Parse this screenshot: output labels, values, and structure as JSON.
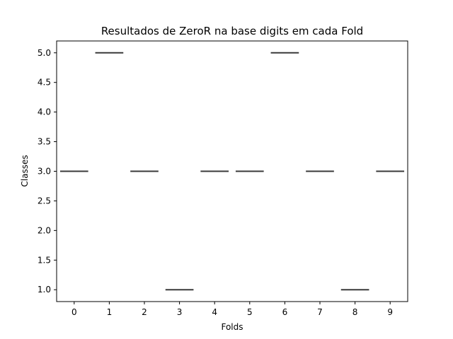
{
  "chart_data": {
    "type": "box",
    "title": "Resultados de ZeroR na base digits em cada Fold",
    "xlabel": "Folds",
    "ylabel": "Classes",
    "categories": [
      "0",
      "1",
      "2",
      "3",
      "4",
      "5",
      "6",
      "7",
      "8",
      "9"
    ],
    "values": [
      3.0,
      5.0,
      3.0,
      1.0,
      3.0,
      3.0,
      5.0,
      3.0,
      1.0,
      3.0
    ],
    "ylim": [
      0.8,
      5.2
    ],
    "yticks": [
      "1.0",
      "1.5",
      "2.0",
      "2.5",
      "3.0",
      "3.5",
      "4.0",
      "4.5",
      "5.0"
    ],
    "grid": false,
    "legend": "none",
    "colors": {
      "box": "#3a3a3a",
      "axes": "#000000",
      "background": "#ffffff"
    }
  }
}
